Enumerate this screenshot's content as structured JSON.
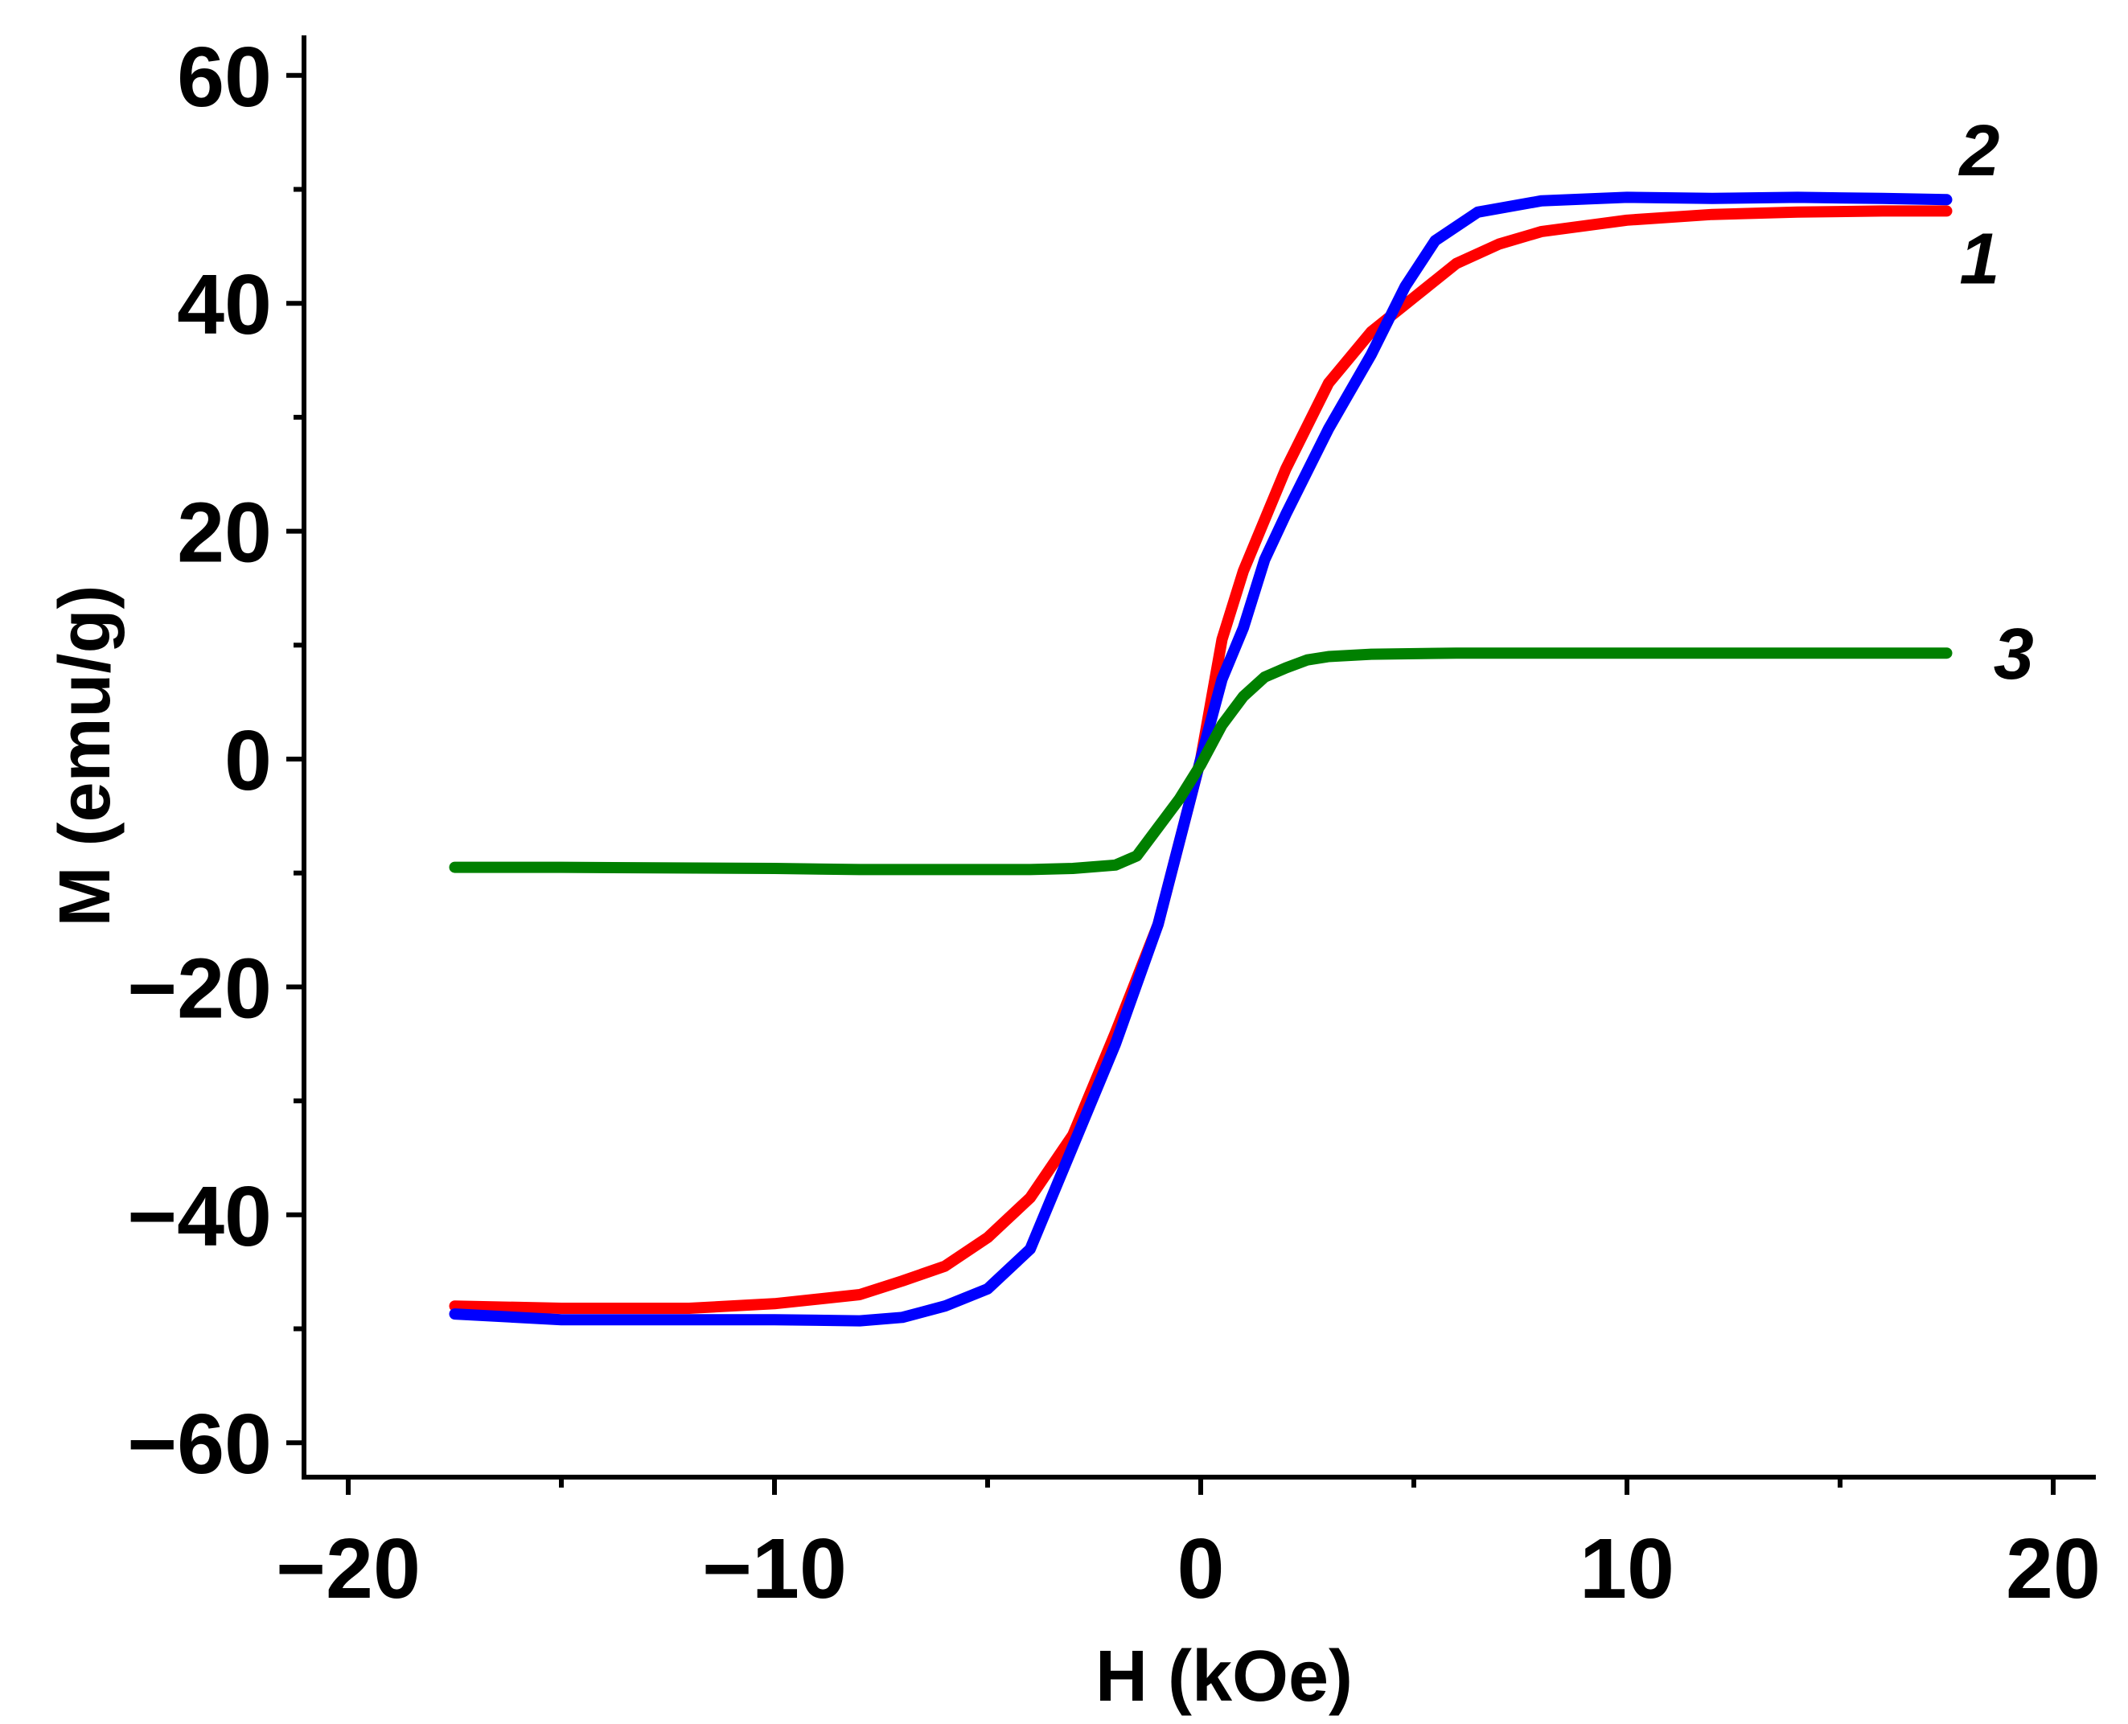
{
  "chart_data": {
    "type": "line",
    "title": "",
    "xlabel": "H (kOe)",
    "ylabel": "M (emu/g)",
    "xlim": [
      -21,
      21
    ],
    "ylim": [
      -63,
      63
    ],
    "x_ticks": [
      -20,
      -10,
      0,
      10,
      20
    ],
    "x_tick_labels": [
      "−20",
      "−10",
      "0",
      "10",
      "20"
    ],
    "x_minor_ticks": [
      -15,
      -5,
      5,
      15
    ],
    "y_ticks": [
      -60,
      -40,
      -20,
      0,
      20,
      40,
      60
    ],
    "y_tick_labels": [
      "−60",
      "−40",
      "−20",
      "0",
      "20",
      "40",
      "60"
    ],
    "y_minor_ticks": [
      -50,
      -30,
      -10,
      10,
      30,
      50
    ],
    "series": [
      {
        "name": "1",
        "color": "#ff0000",
        "x": [
          -17.5,
          -15,
          -12,
          -10,
          -8,
          -7,
          -6,
          -5,
          -4,
          -3,
          -2,
          -1,
          0,
          0.5,
          1,
          1.5,
          2,
          3,
          4,
          5,
          6,
          7,
          8,
          10,
          12,
          14,
          16,
          17.5
        ],
        "y": [
          -48,
          -48.2,
          -48.2,
          -47.8,
          -47,
          -45.8,
          -44.5,
          -42,
          -38.5,
          -33,
          -24,
          -14.5,
          0,
          10.5,
          16.5,
          21,
          25.5,
          33,
          37.5,
          40.5,
          43.5,
          45.2,
          46.3,
          47.3,
          47.8,
          48.0,
          48.1,
          48.1
        ]
      },
      {
        "name": "2",
        "color": "#0000ff",
        "x": [
          -17.5,
          -15,
          -12,
          -10,
          -8,
          -7,
          -6,
          -5,
          -4,
          -3,
          -2,
          -1,
          0,
          0.5,
          1,
          1.5,
          2,
          3,
          4,
          4.8,
          5.5,
          6.5,
          8,
          10,
          12,
          14,
          16,
          17.5
        ],
        "y": [
          -48.7,
          -49.2,
          -49.2,
          -49.2,
          -49.3,
          -49.0,
          -48.0,
          -46.5,
          -43,
          -34,
          -25,
          -14.5,
          0,
          7,
          11.5,
          17.5,
          21.5,
          29,
          35.5,
          41.5,
          45.5,
          48.0,
          49.0,
          49.3,
          49.2,
          49.3,
          49.2,
          49.1
        ]
      },
      {
        "name": "3",
        "color": "#008000",
        "x": [
          -17.5,
          -15,
          -10,
          -8,
          -6,
          -4,
          -3,
          -2,
          -1.5,
          -1,
          -0.5,
          0,
          0.5,
          1,
          1.5,
          2,
          2.5,
          3,
          4,
          6,
          8,
          10,
          12,
          14,
          16,
          17.5
        ],
        "y": [
          -9.5,
          -9.5,
          -9.6,
          -9.7,
          -9.7,
          -9.7,
          -9.6,
          -9.3,
          -8.5,
          -6.0,
          -3.5,
          -0.5,
          3.0,
          5.5,
          7.2,
          8.0,
          8.7,
          9.0,
          9.2,
          9.3,
          9.3,
          9.3,
          9.3,
          9.3,
          9.3,
          9.3
        ]
      }
    ],
    "annotations": [
      {
        "text": "2",
        "x": 17.8,
        "y": 53.5
      },
      {
        "text": "1",
        "x": 17.8,
        "y": 44.0
      },
      {
        "text": "3",
        "x": 18.6,
        "y": 9.3
      }
    ]
  }
}
